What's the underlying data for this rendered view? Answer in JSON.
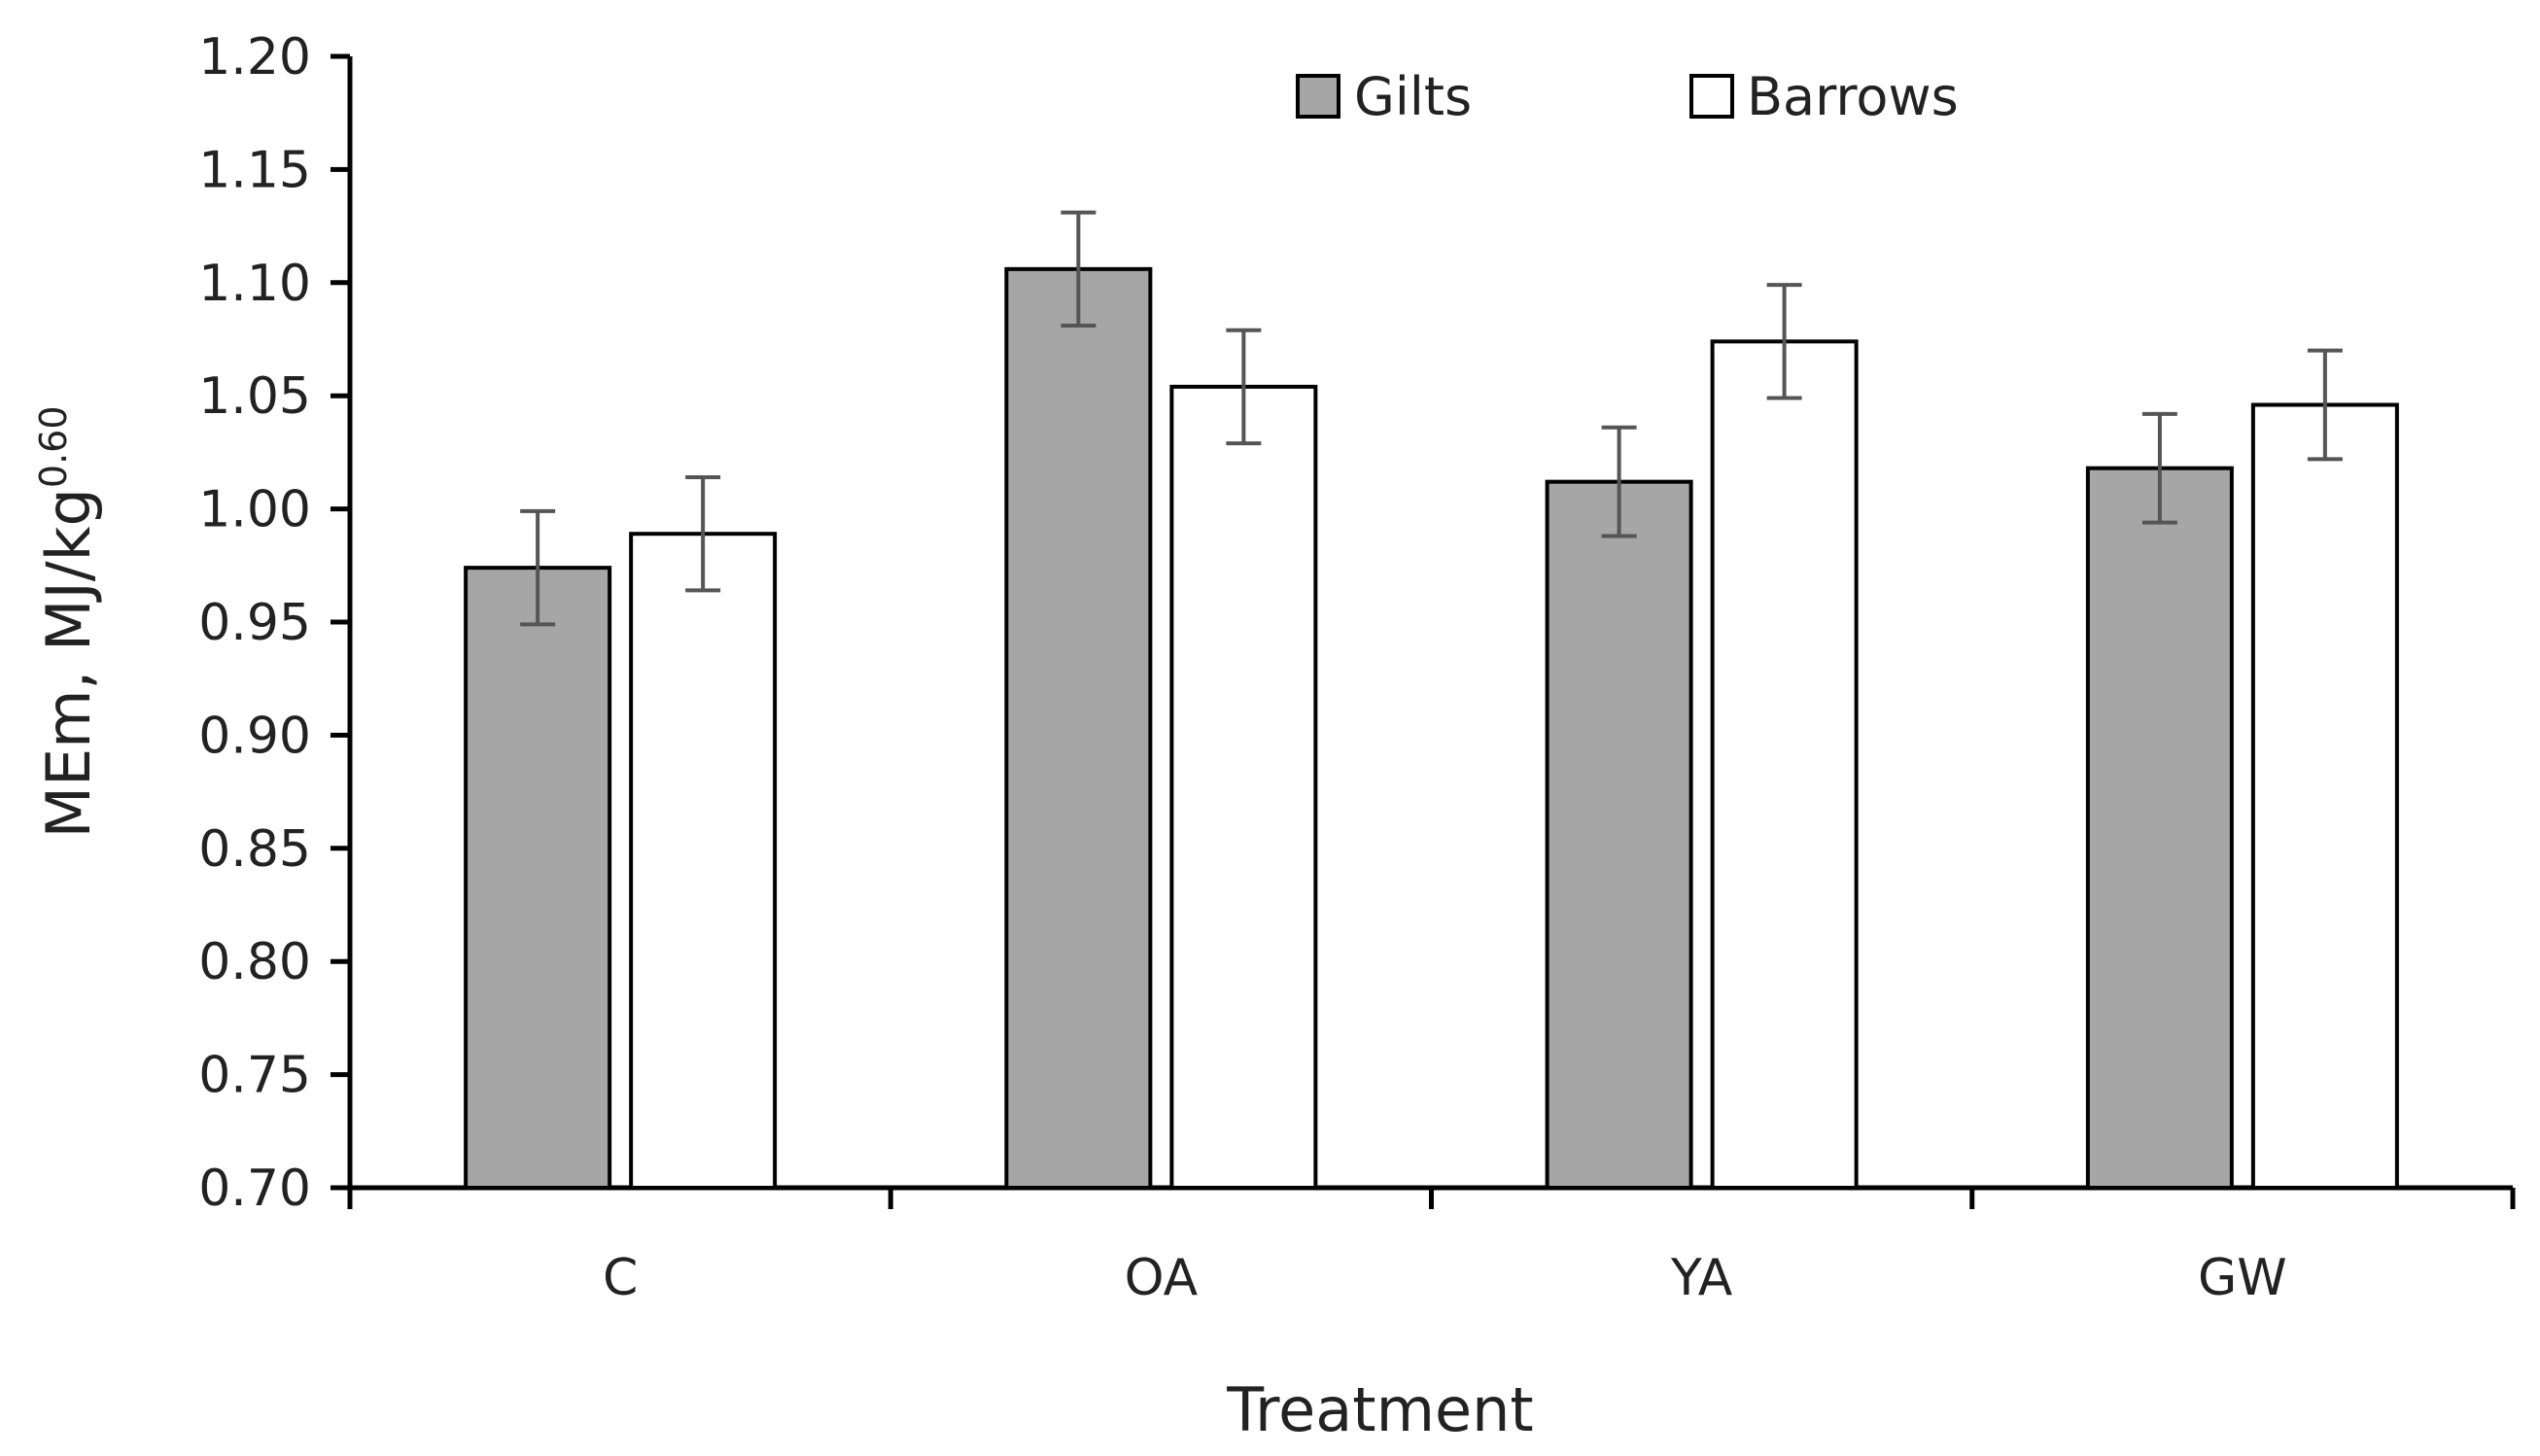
{
  "chart_data": {
    "type": "bar",
    "title": "",
    "xlabel": "Treatment",
    "ylabel": "MEm, MJ/kg",
    "ylabel_superscript": "0.60",
    "categories": [
      "C",
      "OA",
      "YA",
      "GW"
    ],
    "ylim": [
      0.7,
      1.2
    ],
    "ytick_step": 0.05,
    "yticks": [
      "0.70",
      "0.75",
      "0.80",
      "0.85",
      "0.90",
      "0.95",
      "1.00",
      "1.05",
      "1.10",
      "1.15",
      "1.20"
    ],
    "legend_position": "top-center",
    "grid": false,
    "series": [
      {
        "name": "Gilts",
        "color": "#a6a6a6",
        "values": [
          0.974,
          1.106,
          1.012,
          1.018
        ],
        "errors": [
          0.025,
          0.025,
          0.024,
          0.024
        ]
      },
      {
        "name": "Barrows",
        "color": "#ffffff",
        "values": [
          0.989,
          1.054,
          1.074,
          1.046
        ],
        "errors": [
          0.025,
          0.025,
          0.025,
          0.024
        ]
      }
    ]
  }
}
